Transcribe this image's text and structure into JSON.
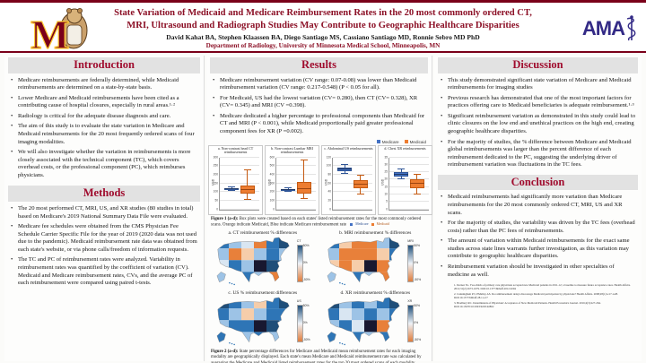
{
  "header": {
    "title_line1": "State Variation of Medicaid and Medicare Reimbursement Rates in the 20 most commonly ordered CT,",
    "title_line2": "MRI, Ultrasound and Radiograph Studies May Contribute to Geographic Healthcare Disparities",
    "authors": "David Kahat BA, Stephen Klaassen BA, Diego Santiago MS, Cassiano Santiago MD, Ronnie Sebro MD PhD",
    "department": "Department of Radiology, University of Minnesota Medical School, Minneapolis, MN",
    "ama_logo_text": "AMA",
    "umn_logo_letter": "M"
  },
  "sections": {
    "introduction": {
      "title": "Introduction",
      "bullets": [
        "Medicare reimbursements are federally determined, while Medicaid reimbursements are determined on a state-by-state basis.",
        "Lower Medicare and Medicaid reimbursements have been cited as a contributing cause of hospital closures, especially in rural areas.¹·²",
        "Radiology is critical for the adequate disease diagnosis and care.",
        "The aim of this study is to evaluate the state variation in Medicare and Medicaid reimbursements for the 20 most frequently ordered scans of four imaging modalities.",
        "We will also investigate whether the variation in reimbursements is more closely associated with the technical component (TC), which covers overhead costs, or the professional component (PC), which reimburses physicians."
      ]
    },
    "methods": {
      "title": "Methods",
      "bullets": [
        "The 20 most performed CT, MRI, US, and XR studies (80 studies in total) based on Medicare's 2019 National Summary Data File were evaluated.",
        "Medicare fee schedules were obtained from the CMS Physician Fee Schedule Carrier Specific File for the year of 2019 (2020 data was not used due to the pandemic). Medicaid reimbursement rate data was obtained from each state's website, or via phone calls/freedom of information requests.",
        "The TC and PC of reimbursement rates were analyzed. Variability in reimbursement rates was quantified by the coefficient of variation (CV). Medicaid and Medicare reimbursement rates, CVs, and the average PC of each reimbursement were compared using paired t-tests."
      ]
    },
    "results": {
      "title": "Results",
      "bullets": [
        "Medicare reimbursement variation (CV range: 0.07-0.08) was lower than Medicaid reimbursement variation (CV range: 0.217-0.548) (P < 0.05 for all).",
        "For Medicaid, US had the lowest variation (CV= 0.280), then CT (CV= 0.328), XR (CV= 0.345) and MRI (CV =0.398).",
        "Medicare dedicated a higher percentage to professional components than Medicaid for CT and MRI (P < 0.001), while Medicaid proportionally paid greater professional component fees for XR (P =0.002)."
      ]
    },
    "discussion": {
      "title": "Discussion",
      "bullets": [
        "This study demonstrated significant state variation of Medicare and Medicaid reimbursements for imaging studies",
        "Previous research has demonstrated that one of the most important factors for practices offering care to Medicaid beneficiaries is adequate reimbursement.¹·³",
        "Significant reimbursement variation as demonstrated in this study could lead to clinic closures on the low end and unethical practices on the high end, creating geographic healthcare disparities.",
        "For the majority of studies, the % difference between Medicare and Medicaid global reimbursements was larger than the percent difference of each reimbursement dedicated to the PC, suggesting the underlying driver of reimbursement variation was fluctuations in the TC fees."
      ]
    },
    "conclusion": {
      "title": "Conclusion",
      "bullets": [
        "Medicaid reimbursements had significantly more variation than Medicare reimbursements for the 20 most commonly ordered CT, MRI, US and XR scans.",
        "For the majority of studies, the variability was driven by the TC fees (overhead costs) rather than the PC fees of reimbursements.",
        "The amount of variation within Medicaid reimbursements for the exact same studies across state lines warrants further investigation, as this variation may contribute to geographic healthcare disparities.",
        "Reimbursement variation should be investigated in other specialties of medicine as well."
      ]
    }
  },
  "figure1": {
    "legend": [
      {
        "label": "Medicare",
        "color": "#4472c4"
      },
      {
        "label": "Medicaid",
        "color": "#ed7d31"
      }
    ],
    "caption_prefix": "Figure 1 (a-d):",
    "caption": "Box plots were created based on each states' listed reimbursement rates for the most commonly ordered scans. Orange indicate Medicaid, Blue indicate Medicare reimbursement rate"
  },
  "figure2": {
    "caption_prefix": "Figure 2 (a-d):",
    "caption": "State percentage differences for Medicare and Medicaid mean reimbursement rates for each imaging modality are geographically displayed. Each state's mean Medicare and Medicaid reimbursement rate was calculated by averaging the Medicare and Medicaid listed reimbursement rates for the top 20 most ordered scans of each modality."
  },
  "references": [
    "1. Decker SL. Two-thirds of primary care physicians accepted new Medicaid patients in 2011-12; a baseline to measure future acceptance rates. Health Affairs. 2012;31(2):1673-1679. DOI:10.1377/hlthaff.2012.0294",
    "2. Cunningham PJ, O'Malley AS. Do reimbursement delays discourage Medicaid participation by physicians? Health Affairs. 2008;28(1):w17-w28. DOI:10.1377/hlthaff.28.1.w17",
    "3. Bradbury RC. Determinants of Physicians' Acceptance of New Medicaid Patients. Health Economics Journal. 2016;4(3):227-264. DOI:10.13070/10.5093/9293.92802"
  ],
  "colors": {
    "umn_maroon": "#7a0019",
    "umn_gold": "#ffcc33",
    "title_red": "#8c1127",
    "section_red": "#a00c2e",
    "medicare_blue": "#4472c4",
    "medicaid_orange": "#ed7d31",
    "ama_navy": "#332a86",
    "map_dark_state": "#181830"
  },
  "chart_data": [
    {
      "type": "box",
      "title": "a. Non-contrast head CT reimbursements",
      "ylabel": "USD",
      "ylim": [
        0,
        300
      ],
      "yticks": [
        0,
        50,
        100,
        150,
        200,
        250,
        300
      ],
      "series": [
        {
          "name": "Medicare",
          "low": 108,
          "q1": 112,
          "median": 117,
          "q3": 122,
          "high": 128
        },
        {
          "name": "Medicaid",
          "low": 55,
          "q1": 90,
          "median": 112,
          "q3": 138,
          "high": 225
        }
      ]
    },
    {
      "type": "box",
      "title": "b. Non-contrast Lumbar MRI reimbursements",
      "ylabel": "USD",
      "ylim": [
        0,
        600
      ],
      "yticks": [
        0,
        100,
        200,
        300,
        400,
        500,
        600
      ],
      "series": [
        {
          "name": "Medicare",
          "low": 205,
          "q1": 215,
          "median": 225,
          "q3": 235,
          "high": 245
        },
        {
          "name": "Medicaid",
          "low": 120,
          "q1": 185,
          "median": 230,
          "q3": 320,
          "high": 560
        }
      ]
    },
    {
      "type": "box",
      "title": "c. Abdominal US reimbursements",
      "ylabel": "USD",
      "ylim": [
        0,
        120
      ],
      "yticks": [
        0,
        20,
        40,
        60,
        80,
        100,
        120
      ],
      "series": [
        {
          "name": "Medicare",
          "low": 82,
          "q1": 88,
          "median": 92,
          "q3": 97,
          "high": 103
        },
        {
          "name": "Medicaid",
          "low": 35,
          "q1": 48,
          "median": 57,
          "q3": 68,
          "high": 78
        }
      ]
    },
    {
      "type": "box",
      "title": "d. Chest XR reimbursements",
      "ylabel": "USD",
      "ylim": [
        0,
        35
      ],
      "yticks": [
        0,
        5,
        10,
        15,
        20,
        25,
        30,
        35
      ],
      "series": [
        {
          "name": "Medicare",
          "low": 20,
          "q1": 22,
          "median": 23,
          "q3": 25,
          "high": 27
        },
        {
          "name": "Medicaid",
          "low": 10,
          "q1": 14,
          "median": 17,
          "q3": 20,
          "high": 23
        }
      ]
    },
    {
      "type": "choropleth",
      "title": "a. CT reimbursement % differences",
      "tag": "CT",
      "scale_top": "50%",
      "scale_mid": "0%",
      "scale_bottom": "-50%",
      "grid": [
        [
          1,
          2,
          3,
          5,
          1,
          0
        ],
        [
          2,
          5,
          4,
          2,
          1,
          2
        ],
        [
          3,
          1,
          2,
          7,
          0,
          1
        ],
        [
          2,
          3,
          1,
          2,
          5,
          1
        ]
      ]
    },
    {
      "type": "choropleth",
      "title": "b. MRI reimbursement % differences",
      "tag": "MRI",
      "scale_top": "50%",
      "scale_mid": "0%",
      "scale_bottom": "-50%",
      "grid": [
        [
          1,
          4,
          5,
          5,
          2,
          0
        ],
        [
          2,
          5,
          5,
          5,
          4,
          1
        ],
        [
          4,
          5,
          4,
          7,
          5,
          2
        ],
        [
          2,
          4,
          1,
          2,
          5,
          0
        ]
      ]
    },
    {
      "type": "choropleth",
      "title": "c. US % reimbursement differences",
      "tag": "US",
      "scale_top": "50%",
      "scale_mid": "0%",
      "scale_bottom": "-50%",
      "grid": [
        [
          0,
          1,
          2,
          4,
          1,
          0
        ],
        [
          1,
          2,
          4,
          2,
          1,
          1
        ],
        [
          2,
          1,
          1,
          7,
          0,
          1
        ],
        [
          1,
          2,
          2,
          1,
          2,
          0
        ]
      ]
    },
    {
      "type": "choropleth",
      "title": "d. XR reimbursement % differences",
      "tag": "XR",
      "scale_top": "50%",
      "scale_mid": "0%",
      "scale_bottom": "-50%",
      "grid": [
        [
          0,
          2,
          1,
          2,
          1,
          0
        ],
        [
          1,
          3,
          2,
          1,
          2,
          1
        ],
        [
          2,
          1,
          3,
          7,
          5,
          1
        ],
        [
          1,
          2,
          1,
          2,
          1,
          0
        ]
      ]
    }
  ],
  "map_palette": [
    "#1f4e79",
    "#2e75b6",
    "#9dc3e6",
    "#d9e6f2",
    "#f6cdaa",
    "#e8803a",
    "#f4f1ec",
    "#181830"
  ]
}
